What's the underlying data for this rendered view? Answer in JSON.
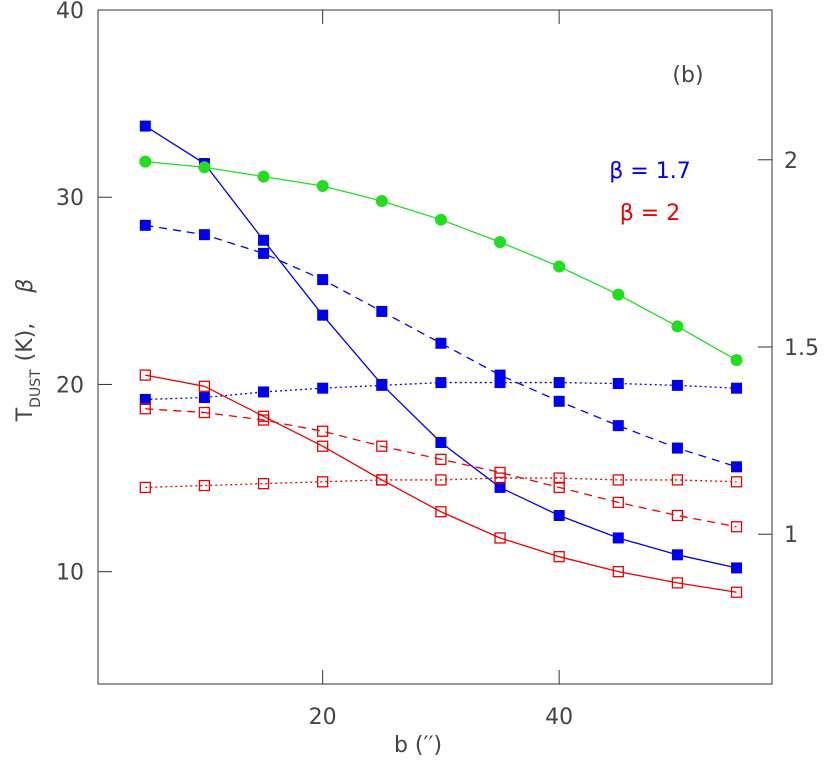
{
  "chart_data": {
    "type": "line",
    "x_label": "b (′′)",
    "y_label": {
      "main": "T",
      "sub": "DUST",
      "unit": "(K),",
      "beta": "β"
    },
    "annotations": [
      {
        "text": "(b)",
        "color": "#444444"
      },
      {
        "text": "β = 1.7",
        "color": "#0000ee"
      },
      {
        "text": "β = 2",
        "color": "#ee0000"
      }
    ],
    "x": [
      5,
      10,
      15,
      20,
      25,
      30,
      35,
      40,
      45,
      50,
      55
    ],
    "xlim": [
      1,
      58
    ],
    "xticks": [
      20,
      40
    ],
    "ylim": [
      4,
      40
    ],
    "yticks": [
      10,
      20,
      30,
      40
    ],
    "y2lim": [
      0.6,
      2.4
    ],
    "y2ticks": [
      1,
      1.5,
      2
    ],
    "series": [
      {
        "color": "#0000ee",
        "style": "solid",
        "marker": "filled-square",
        "values": [
          33.8,
          31.8,
          27.7,
          23.7,
          20.0,
          16.9,
          14.5,
          13.0,
          11.8,
          10.9,
          10.2
        ]
      },
      {
        "color": "#0000ee",
        "style": "dashed",
        "marker": "filled-square",
        "values": [
          28.5,
          28.0,
          27.0,
          25.6,
          23.9,
          22.2,
          20.5,
          19.1,
          17.8,
          16.6,
          15.6
        ]
      },
      {
        "color": "#0000ee",
        "style": "dotted",
        "marker": "filled-square",
        "values": [
          19.2,
          19.3,
          19.6,
          19.8,
          19.95,
          20.1,
          20.1,
          20.1,
          20.05,
          19.95,
          19.8
        ]
      },
      {
        "color": "#22dd22",
        "style": "solid",
        "marker": "circle",
        "values": [
          31.9,
          31.6,
          31.1,
          30.6,
          29.8,
          28.8,
          27.6,
          26.3,
          24.8,
          23.1,
          21.3
        ]
      },
      {
        "color": "#ee0000",
        "style": "solid",
        "marker": "open-square",
        "values": [
          20.5,
          19.9,
          18.3,
          16.7,
          14.9,
          13.2,
          11.8,
          10.8,
          10.0,
          9.4,
          8.9
        ]
      },
      {
        "color": "#ee0000",
        "style": "dashed",
        "marker": "open-square",
        "values": [
          18.7,
          18.5,
          18.1,
          17.5,
          16.7,
          16.0,
          15.3,
          14.5,
          13.7,
          13.0,
          12.4
        ]
      },
      {
        "color": "#ee0000",
        "style": "dotted",
        "marker": "open-square",
        "values": [
          14.5,
          14.6,
          14.7,
          14.8,
          14.9,
          14.9,
          15.0,
          15.0,
          14.9,
          14.9,
          14.8
        ]
      }
    ]
  }
}
